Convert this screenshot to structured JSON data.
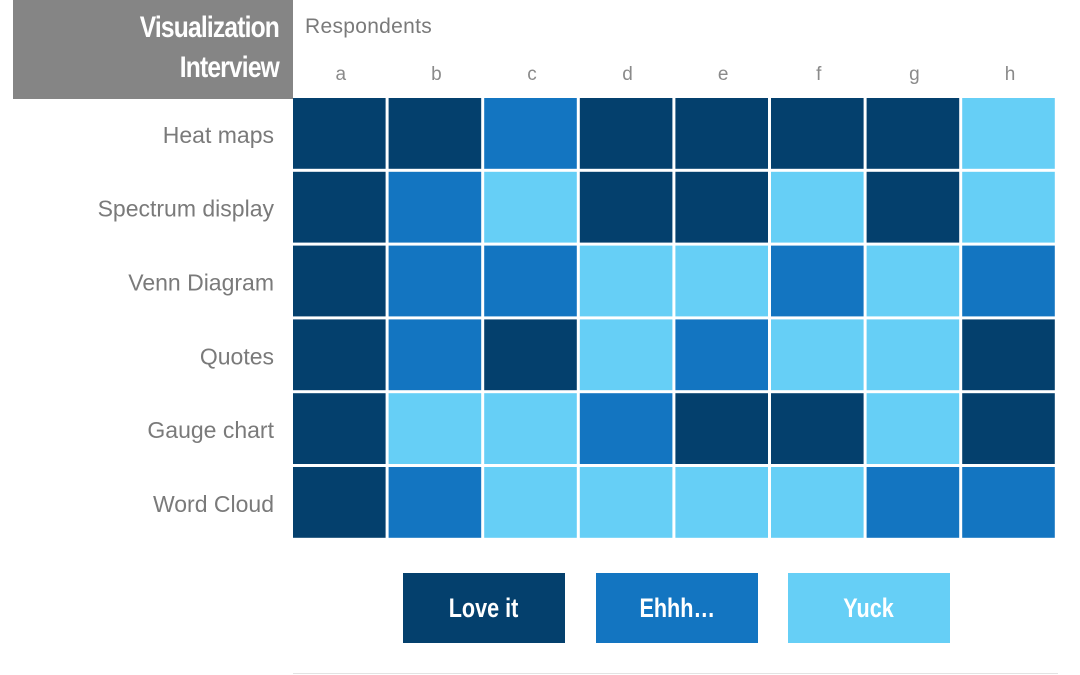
{
  "title": {
    "line1": "Visualization",
    "line2": "Interview"
  },
  "columns_title": "Respondents",
  "chart_data": {
    "type": "heatmap",
    "columns": [
      "a",
      "b",
      "c",
      "d",
      "e",
      "f",
      "g",
      "h"
    ],
    "rows": [
      "Heat maps",
      "Spectrum display",
      "Venn Diagram",
      "Quotes",
      "Gauge chart",
      "Word Cloud"
    ],
    "values": [
      [
        "Love it",
        "Love it",
        "Ehhh…",
        "Love it",
        "Love it",
        "Love it",
        "Love it",
        "Yuck"
      ],
      [
        "Love it",
        "Ehhh…",
        "Yuck",
        "Love it",
        "Love it",
        "Yuck",
        "Love it",
        "Yuck"
      ],
      [
        "Love it",
        "Ehhh…",
        "Ehhh…",
        "Yuck",
        "Yuck",
        "Ehhh…",
        "Yuck",
        "Ehhh…"
      ],
      [
        "Love it",
        "Ehhh…",
        "Love it",
        "Yuck",
        "Ehhh…",
        "Yuck",
        "Yuck",
        "Love it"
      ],
      [
        "Love it",
        "Yuck",
        "Yuck",
        "Ehhh…",
        "Love it",
        "Love it",
        "Yuck",
        "Love it"
      ],
      [
        "Love it",
        "Ehhh…",
        "Yuck",
        "Yuck",
        "Yuck",
        "Yuck",
        "Ehhh…",
        "Ehhh…"
      ]
    ],
    "legend": [
      {
        "label": "Love it",
        "color": "#04406d"
      },
      {
        "label": "Ehhh…",
        "color": "#1375c1"
      },
      {
        "label": "Yuck",
        "color": "#66cff6"
      }
    ],
    "legend_position": "bottom"
  }
}
